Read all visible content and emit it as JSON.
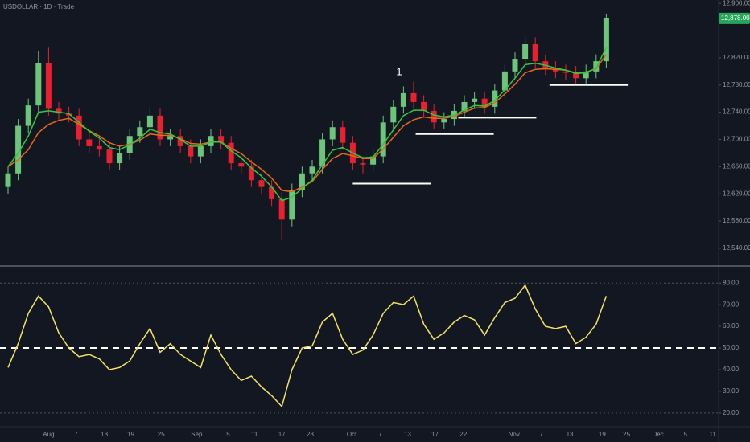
{
  "chart_data": {
    "type": "candlestick",
    "title": "USDOLLAR · 1D · Trade",
    "up_color": "#6cc57a",
    "down_color": "#e8202f",
    "background": "#131722",
    "candles": {
      "open": [
        12630,
        12650,
        12720,
        12750,
        12812,
        12745,
        12738,
        12735,
        12700,
        12690,
        12685,
        12665,
        12680,
        12705,
        12718,
        12735,
        12700,
        12705,
        12690,
        12675,
        12690,
        12705,
        12695,
        12665,
        12660,
        12640,
        12630,
        12612,
        12582,
        12625,
        12650,
        12660,
        12700,
        12718,
        12695,
        12665,
        12663,
        12675,
        12725,
        12748,
        12768,
        12755,
        12742,
        12725,
        12730,
        12742,
        12755,
        12760,
        12748,
        12772,
        12800,
        12818,
        12840,
        12815,
        12805,
        12800,
        12798,
        12790,
        12800,
        12815
      ],
      "high": [
        12660,
        12730,
        12760,
        12830,
        12835,
        12755,
        12748,
        12745,
        12710,
        12700,
        12695,
        12690,
        12715,
        12728,
        12748,
        12745,
        12715,
        12715,
        12700,
        12700,
        12715,
        12715,
        12705,
        12675,
        12670,
        12650,
        12640,
        12622,
        12635,
        12660,
        12670,
        12710,
        12728,
        12728,
        12705,
        12675,
        12685,
        12735,
        12758,
        12778,
        12785,
        12765,
        12752,
        12740,
        12752,
        12765,
        12770,
        12770,
        12782,
        12810,
        12828,
        12850,
        12850,
        12825,
        12815,
        12810,
        12808,
        12810,
        12825,
        12885
      ],
      "low": [
        12620,
        12640,
        12710,
        12740,
        12735,
        12728,
        12725,
        12690,
        12680,
        12675,
        12655,
        12655,
        12670,
        12695,
        12708,
        12690,
        12690,
        12680,
        12665,
        12665,
        12680,
        12685,
        12655,
        12650,
        12630,
        12620,
        12602,
        12552,
        12572,
        12615,
        12640,
        12650,
        12690,
        12685,
        12655,
        12650,
        12653,
        12665,
        12715,
        12738,
        12745,
        12732,
        12715,
        12715,
        12720,
        12732,
        12745,
        12738,
        12738,
        12762,
        12790,
        12808,
        12805,
        12795,
        12790,
        12788,
        12780,
        12780,
        12790,
        12805
      ],
      "close": [
        12650,
        12720,
        12750,
        12812,
        12745,
        12738,
        12735,
        12700,
        12690,
        12685,
        12665,
        12680,
        12705,
        12718,
        12735,
        12700,
        12705,
        12690,
        12675,
        12690,
        12705,
        12695,
        12665,
        12660,
        12640,
        12630,
        12612,
        12582,
        12625,
        12650,
        12660,
        12700,
        12718,
        12695,
        12665,
        12663,
        12675,
        12725,
        12748,
        12768,
        12755,
        12742,
        12725,
        12730,
        12742,
        12755,
        12760,
        12748,
        12772,
        12800,
        12818,
        12840,
        12815,
        12805,
        12800,
        12798,
        12790,
        12800,
        12815,
        12878
      ]
    },
    "ma_fast": {
      "color": "#2ecc40",
      "values": [
        12660,
        12680,
        12705,
        12740,
        12742,
        12740,
        12738,
        12725,
        12712,
        12702,
        12688,
        12685,
        12692,
        12702,
        12715,
        12710,
        12708,
        12700,
        12690,
        12690,
        12696,
        12696,
        12683,
        12673,
        12658,
        12646,
        12630,
        12610,
        12615,
        12628,
        12640,
        12663,
        12684,
        12688,
        12680,
        12673,
        12674,
        12693,
        12714,
        12735,
        12743,
        12743,
        12736,
        12733,
        12736,
        12743,
        12750,
        12749,
        12757,
        12773,
        12790,
        12810,
        12812,
        12809,
        12805,
        12802,
        12797,
        12798,
        12805,
        12835
      ]
    },
    "ma_slow": {
      "color": "#e8671c",
      "values": [
        12660,
        12670,
        12685,
        12710,
        12722,
        12728,
        12731,
        12722,
        12713,
        12705,
        12695,
        12690,
        12693,
        12699,
        12708,
        12706,
        12706,
        12701,
        12694,
        12693,
        12696,
        12696,
        12687,
        12679,
        12667,
        12656,
        12643,
        12625,
        12623,
        12630,
        12638,
        12656,
        12672,
        12679,
        12676,
        12672,
        12672,
        12686,
        12703,
        12720,
        12729,
        12733,
        12731,
        12731,
        12734,
        12740,
        12746,
        12747,
        12754,
        12767,
        12781,
        12798,
        12803,
        12804,
        12803,
        12802,
        12798,
        12799,
        12804,
        12825
      ]
    },
    "ylim": [
      12515,
      12905
    ],
    "yticks": [
      {
        "value": 12900,
        "label": "12,900.00"
      },
      {
        "value": 12820,
        "label": "12,820.00"
      },
      {
        "value": 12780,
        "label": "12,780.00"
      },
      {
        "value": 12740,
        "label": "12,740.00"
      },
      {
        "value": 12700,
        "label": "12,700.00"
      },
      {
        "value": 12660,
        "label": "12,660.00"
      },
      {
        "value": 12620,
        "label": "12,620.00"
      },
      {
        "value": 12580,
        "label": "12,580.00"
      },
      {
        "value": 12540,
        "label": "12,540.00"
      }
    ],
    "last_price": {
      "value": 12878,
      "label": "12,878.00",
      "color": "#26a65b"
    },
    "levels": [
      {
        "value": 12635,
        "start": 34,
        "end": 41.7
      },
      {
        "value": 12708,
        "start": 40.2,
        "end": 47.9
      },
      {
        "value": 12732,
        "start": 44.4,
        "end": 52.1
      },
      {
        "value": 12780,
        "start": 53.4,
        "end": 61.2
      }
    ],
    "annotation": "1",
    "xticks": [
      {
        "value": 4,
        "label": "Aug"
      },
      {
        "value": 6.7,
        "label": "7"
      },
      {
        "value": 9.5,
        "label": "13"
      },
      {
        "value": 12.1,
        "label": "19"
      },
      {
        "value": 15.1,
        "label": "25"
      },
      {
        "value": 18.6,
        "label": "Sep"
      },
      {
        "value": 21.7,
        "label": "5"
      },
      {
        "value": 24.3,
        "label": "11"
      },
      {
        "value": 27,
        "label": "17"
      },
      {
        "value": 29.8,
        "label": "23"
      },
      {
        "value": 33.9,
        "label": "Oct"
      },
      {
        "value": 36.7,
        "label": "7"
      },
      {
        "value": 39.4,
        "label": "13"
      },
      {
        "value": 42.1,
        "label": "17"
      },
      {
        "value": 44.9,
        "label": "22"
      },
      {
        "value": 49.9,
        "label": "Nov"
      },
      {
        "value": 52.6,
        "label": "7"
      },
      {
        "value": 55.4,
        "label": "13"
      },
      {
        "value": 58.6,
        "label": "19"
      },
      {
        "value": 61,
        "label": "25"
      },
      {
        "value": 64.1,
        "label": "Dec"
      },
      {
        "value": 66.8,
        "label": "5"
      },
      {
        "value": 69.5,
        "label": "11"
      }
    ],
    "rsi": {
      "color": "#f3e467",
      "values": [
        41,
        52,
        66,
        74,
        69,
        57,
        50,
        46,
        47,
        45,
        40,
        41,
        44,
        52,
        59,
        48,
        52,
        47,
        44,
        41,
        56,
        47,
        40,
        35,
        37,
        32,
        28,
        23,
        40,
        50,
        51,
        62,
        66,
        54,
        47,
        49,
        56,
        66,
        71,
        70,
        74,
        61,
        54,
        57,
        62,
        65,
        63,
        56,
        64,
        71,
        73,
        79,
        68,
        60,
        59,
        60,
        52,
        55,
        61,
        74
      ]
    },
    "rsi_ylim": [
      14,
      87.5
    ],
    "rsi_yticks": [
      {
        "value": 80,
        "label": "80.00"
      },
      {
        "value": 70,
        "label": "70.00"
      },
      {
        "value": 60,
        "label": "60.00"
      },
      {
        "value": 50,
        "label": "50.00"
      },
      {
        "value": 40,
        "label": "40.00"
      },
      {
        "value": 30,
        "label": "30.00"
      },
      {
        "value": 20,
        "label": "20.00"
      }
    ],
    "rsi_levels": [
      {
        "value": 80,
        "style": "dotted"
      },
      {
        "value": 50,
        "style": "dashed"
      },
      {
        "value": 20,
        "style": "dotted"
      }
    ]
  }
}
